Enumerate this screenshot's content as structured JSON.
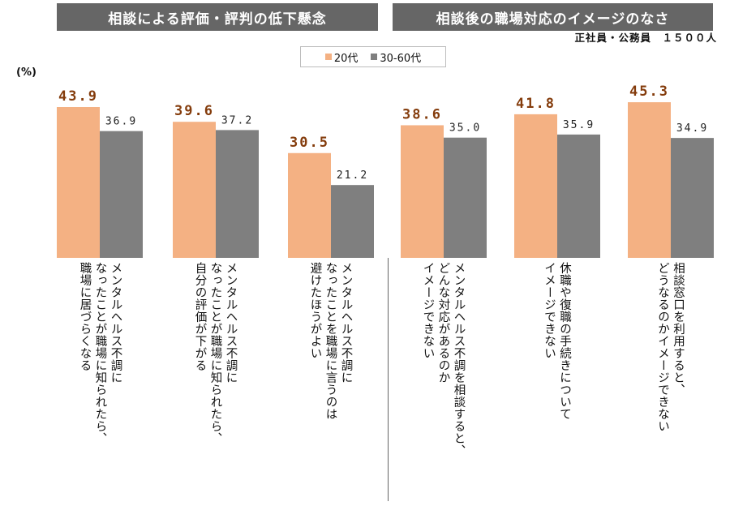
{
  "header": {
    "left_title": "相談による評価・評判の低下懸念",
    "right_title": "相談後の職場対応のイメージのなさ",
    "sample_note": "正社員・公務員　１５００人"
  },
  "legend": [
    {
      "label": "20代",
      "color": "#f4b183"
    },
    {
      "label": "30-60代",
      "color": "#7f7f7f"
    }
  ],
  "unit_label": "(%)",
  "chart_data": {
    "type": "bar",
    "title": "",
    "ylabel": "(%)",
    "ylim": [
      0,
      50
    ],
    "categories": [
      "メンタルヘルス不調に\nなったことが職場に知られたら、\n職場に居づらくなる",
      "メンタルヘルス不調に\nなったことが職場に知られたら、\n自分の評価が下がる",
      "メンタルヘルス不調に\nなったことを職場に言うのは\n避けたほうがよい",
      "メンタルヘルス不調を相談すると、\nどんな対応があるのか\nイメージできない",
      "休職や復職の手続きについて\nイメージできない",
      "相談窓口を利用すると、\nどうなるのかイメージできない"
    ],
    "series": [
      {
        "name": "20代",
        "values": [
          43.9,
          39.6,
          30.5,
          38.6,
          41.8,
          45.3
        ],
        "labels": [
          "43.9",
          "39.6",
          "30.5",
          "38.6",
          "41.8",
          "45.3"
        ],
        "color": "#f4b183"
      },
      {
        "name": "30-60代",
        "values": [
          36.9,
          37.2,
          21.2,
          35.0,
          35.9,
          34.9
        ],
        "labels": [
          "36.9",
          "37.2",
          "21.2",
          "35.0",
          "35.9",
          "34.9"
        ],
        "color": "#7f7f7f"
      }
    ]
  }
}
